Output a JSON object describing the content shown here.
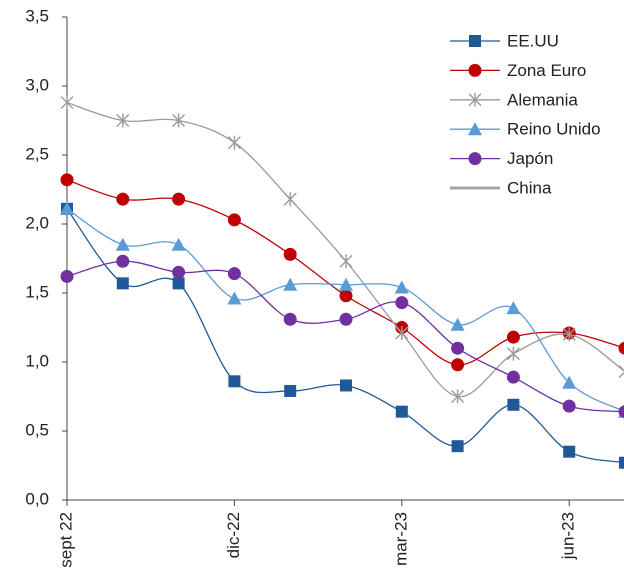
{
  "chart_data": {
    "type": "line",
    "categories": [
      "sept 22",
      null,
      null,
      "dic-22",
      null,
      null,
      "mar-23",
      null,
      null,
      "jun-23",
      null
    ],
    "ylim": [
      0,
      3.5
    ],
    "yticks": [
      {
        "value": 0,
        "label": "0,0"
      },
      {
        "value": 0.5,
        "label": "0,5"
      },
      {
        "value": 1,
        "label": "1,0"
      },
      {
        "value": 1.5,
        "label": "1,5"
      },
      {
        "value": 2,
        "label": "2,0"
      },
      {
        "value": 2.5,
        "label": "2,5"
      },
      {
        "value": 3,
        "label": "3,0"
      },
      {
        "value": 3.5,
        "label": "3,5"
      }
    ],
    "series": [
      {
        "name": "EE.UU",
        "color": "#1f5a96",
        "marker": "square",
        "values": [
          2.11,
          1.57,
          1.57,
          0.86,
          0.79,
          0.83,
          0.64,
          0.39,
          0.69,
          0.35,
          0.27
        ]
      },
      {
        "name": "Zona Euro",
        "color": "#c00000",
        "marker": "circle",
        "values": [
          2.32,
          2.18,
          2.18,
          2.03,
          1.78,
          1.48,
          1.25,
          0.98,
          1.18,
          1.21,
          1.1
        ]
      },
      {
        "name": "Alemania",
        "color": "#9a9a9a",
        "marker": "asterisk",
        "values": [
          2.88,
          2.75,
          2.75,
          2.59,
          2.18,
          1.73,
          1.21,
          0.75,
          1.06,
          1.2,
          0.93
        ]
      },
      {
        "name": "Reino Unido",
        "color": "#5b9bd5",
        "marker": "triangle",
        "values": [
          2.11,
          1.85,
          1.85,
          1.46,
          1.56,
          1.56,
          1.54,
          1.27,
          1.39,
          0.85,
          0.64
        ]
      },
      {
        "name": "Japón",
        "color": "#7030a0",
        "marker": "circle",
        "values": [
          1.62,
          1.73,
          1.65,
          1.64,
          1.31,
          1.31,
          1.43,
          1.1,
          0.89,
          0.68,
          0.64
        ]
      },
      {
        "name": "China",
        "color": "#a6a6a6",
        "marker": "none",
        "values": [
          null,
          null,
          null,
          null,
          null,
          null,
          null,
          null,
          null,
          null,
          null
        ]
      }
    ]
  }
}
